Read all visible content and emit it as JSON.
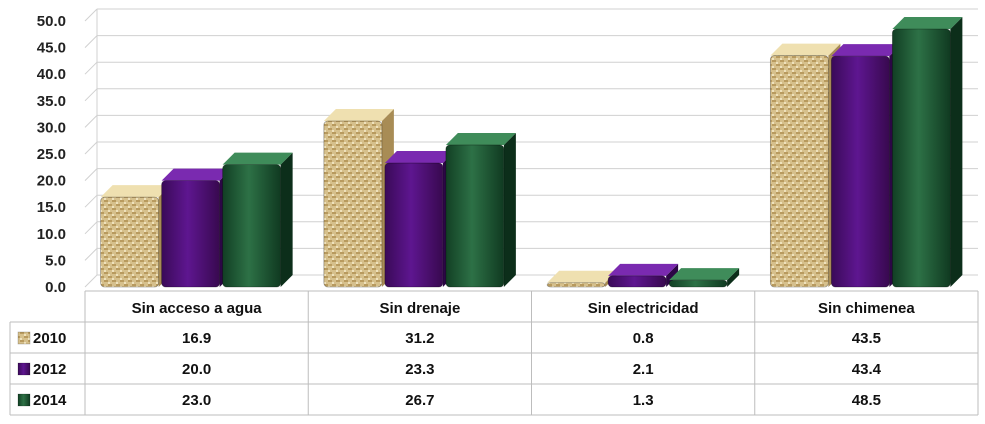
{
  "chart_data": {
    "type": "bar",
    "categories": [
      "Sin acceso a agua",
      "Sin drenaje",
      "Sin electricidad",
      "Sin chimenea"
    ],
    "series": [
      {
        "name": "2010",
        "values": [
          16.9,
          31.2,
          0.8,
          43.5
        ],
        "color": "#cdb580"
      },
      {
        "name": "2012",
        "values": [
          20.0,
          23.3,
          2.1,
          43.4
        ],
        "color": "#4b1170"
      },
      {
        "name": "2014",
        "values": [
          23.0,
          26.7,
          1.3,
          48.5
        ],
        "color": "#1c5a34"
      }
    ],
    "value_labels": [
      [
        "16.9",
        "31.2",
        "0.8",
        "43.5"
      ],
      [
        "20.0",
        "23.3",
        "2.1",
        "43.4"
      ],
      [
        "23.0",
        "26.7",
        "1.3",
        "48.5"
      ]
    ],
    "yticks": [
      "0.0",
      "5.0",
      "10.0",
      "15.0",
      "20.0",
      "25.0",
      "30.0",
      "35.0",
      "40.0",
      "45.0",
      "50.0"
    ],
    "ylim": [
      0,
      50
    ],
    "grid": true,
    "legend": "data-table"
  }
}
